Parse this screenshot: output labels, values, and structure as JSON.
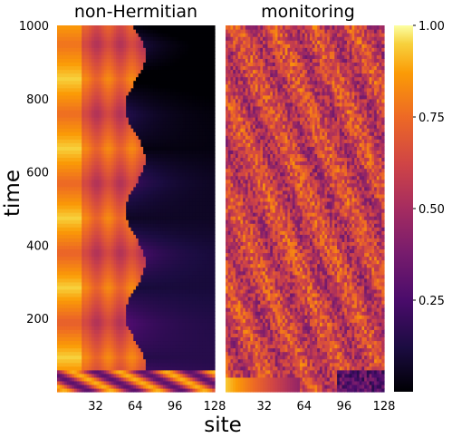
{
  "chart_data": {
    "type": "heatmap",
    "colormap": "inferno",
    "colorbar": {
      "range": [
        0,
        1
      ],
      "ticks": [
        1.0,
        0.75,
        0.5,
        0.25
      ],
      "tick_labels": [
        "1.00",
        "0.75",
        "0.50",
        "0.25"
      ]
    },
    "xlabel": "site",
    "ylabel": "time",
    "xlim": [
      1,
      128
    ],
    "ylim": [
      0,
      1000
    ],
    "x_ticks": [
      32,
      64,
      96,
      128
    ],
    "x_tick_labels": [
      "32",
      "64",
      "96",
      "128"
    ],
    "y_ticks": [
      1000,
      800,
      600,
      400,
      200
    ],
    "y_tick_labels": [
      "1000",
      "800",
      "600",
      "400",
      "200"
    ],
    "panels": [
      {
        "title": "non-Hermitian",
        "pattern": "domain wall: high values on left sites, low values on right sites, with periodic triangular oscillations in time"
      },
      {
        "title": "monitoring",
        "pattern": "noisy, mostly mid-to-high values across all sites; higher values near the initial times on the left"
      }
    ]
  }
}
